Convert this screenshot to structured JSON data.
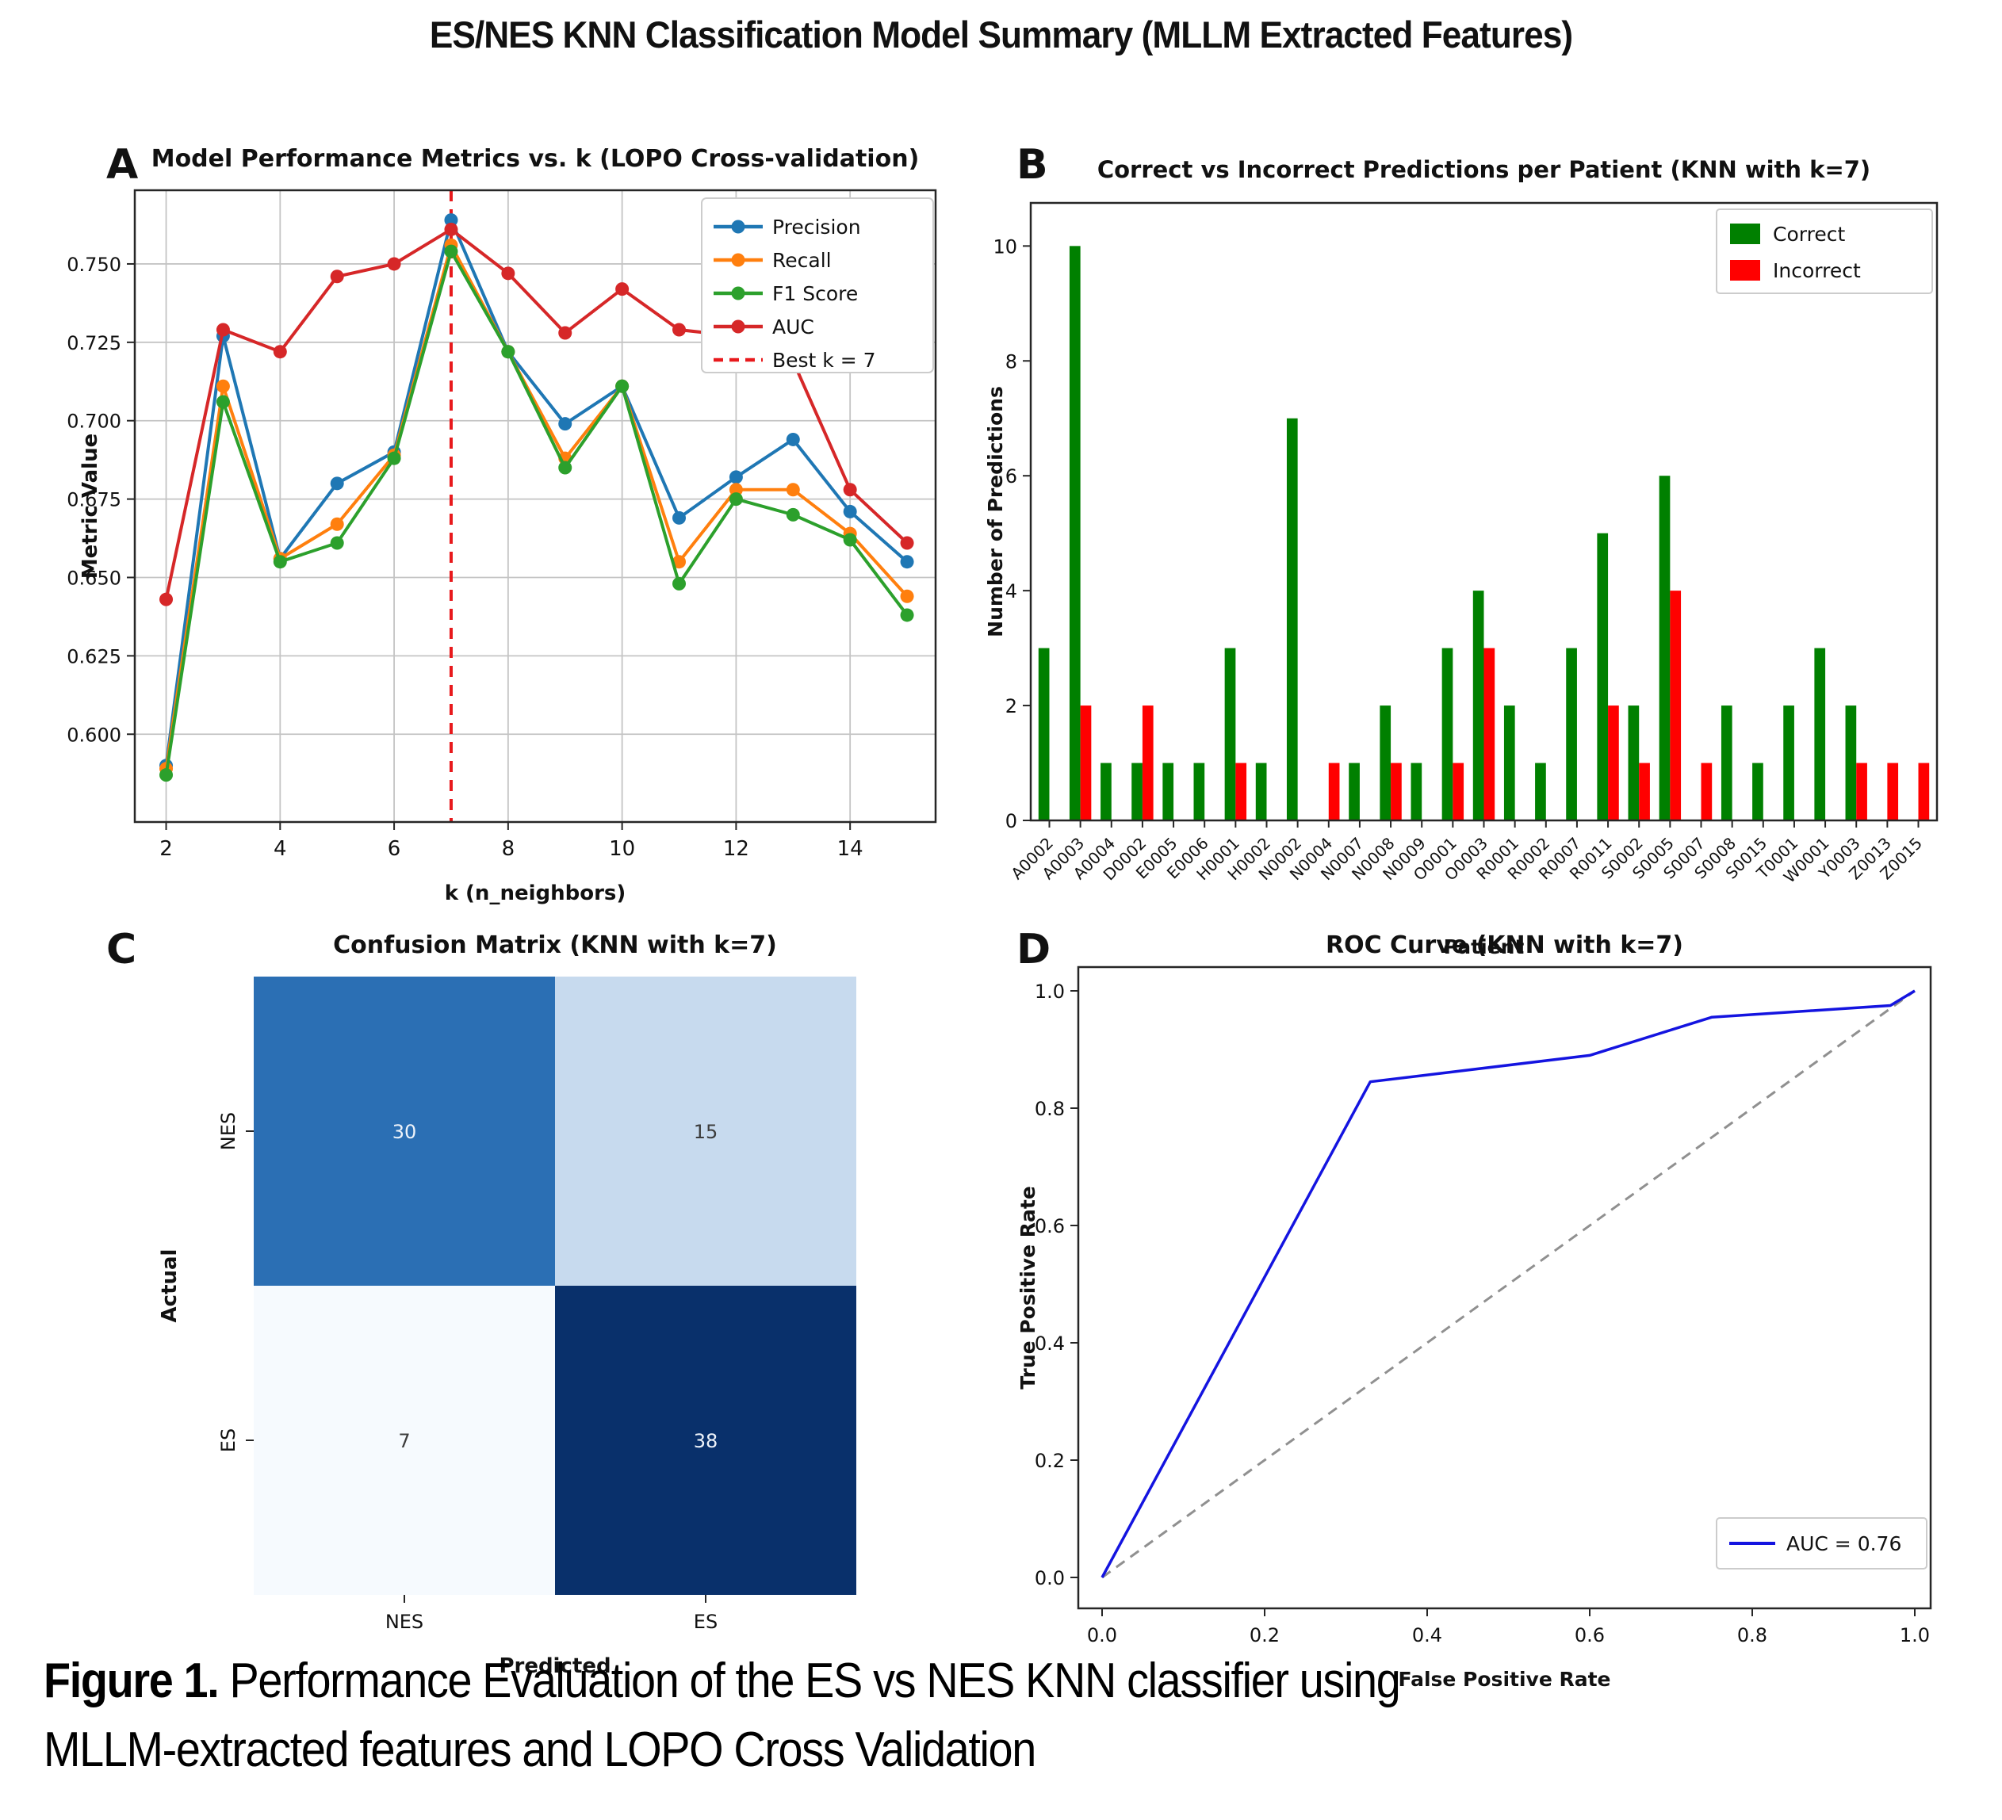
{
  "figure_title": "ES/NES KNN Classification Model Summary (MLLM Extracted Features)",
  "panel_letters": {
    "a": "A",
    "b": "B",
    "c": "C",
    "d": "D"
  },
  "caption": {
    "bold": "Figure 1.",
    "line1_rest": " Performance Evaluation of the ES vs NES KNN classifier using",
    "line2": "MLLM-extracted features and LOPO Cross Validation"
  },
  "chart_data": [
    {
      "id": "metrics-vs-k",
      "type": "line",
      "title": "Model Performance Metrics vs. k (LOPO Cross-validation)",
      "xlabel": "k (n_neighbors)",
      "ylabel": "Metric Value",
      "x": [
        2,
        3,
        4,
        5,
        6,
        7,
        8,
        9,
        10,
        11,
        12,
        13,
        14,
        15
      ],
      "xticks": [
        2,
        4,
        6,
        8,
        10,
        12,
        14
      ],
      "yticks": [
        "0.600",
        "0.625",
        "0.650",
        "0.675",
        "0.700",
        "0.725",
        "0.750"
      ],
      "xlim": [
        1.45,
        15.5
      ],
      "ylim": [
        0.572,
        0.7735
      ],
      "grid": true,
      "legend_position": "upper right",
      "series": [
        {
          "name": "Precision",
          "color": "#1f77b4",
          "values": [
            0.59,
            0.727,
            0.656,
            0.68,
            0.69,
            0.764,
            0.722,
            0.699,
            0.711,
            0.669,
            0.682,
            0.694,
            0.671,
            0.655
          ]
        },
        {
          "name": "Recall",
          "color": "#ff7f0e",
          "values": [
            0.589,
            0.711,
            0.656,
            0.667,
            0.689,
            0.756,
            0.722,
            0.688,
            0.711,
            0.655,
            0.678,
            0.678,
            0.664,
            0.644
          ]
        },
        {
          "name": "F1 Score",
          "color": "#2ca02c",
          "values": [
            0.587,
            0.706,
            0.655,
            0.661,
            0.688,
            0.754,
            0.722,
            0.685,
            0.711,
            0.648,
            0.675,
            0.67,
            0.662,
            0.638
          ]
        },
        {
          "name": "AUC",
          "color": "#d62728",
          "values": [
            0.643,
            0.729,
            0.722,
            0.746,
            0.75,
            0.761,
            0.747,
            0.728,
            0.742,
            0.729,
            0.727,
            0.719,
            0.678,
            0.661
          ]
        }
      ],
      "best_k": 7,
      "best_k_label": "Best k = 7",
      "best_k_color": "#e8191c"
    },
    {
      "id": "per-patient",
      "type": "bar",
      "title": "Correct vs Incorrect Predictions per Patient (KNN with k=7)",
      "xlabel": "Patient",
      "ylabel": "Number of Predictions",
      "categories": [
        "A0002",
        "A0003",
        "A0004",
        "D0002",
        "E0005",
        "E0006",
        "H0001",
        "H0002",
        "N0002",
        "N0004",
        "N0007",
        "N0008",
        "N0009",
        "O0001",
        "O0003",
        "R0001",
        "R0002",
        "R0007",
        "R0011",
        "S0002",
        "S0005",
        "S0007",
        "S0008",
        "S0015",
        "T0001",
        "W0001",
        "Y0003",
        "Z0013",
        "Z0015"
      ],
      "yticks": [
        0,
        2,
        4,
        6,
        8,
        10
      ],
      "ylim": [
        0,
        10.75
      ],
      "grid": false,
      "legend_position": "upper right",
      "series": [
        {
          "name": "Correct",
          "color": "#008000",
          "values": [
            3,
            10,
            1,
            1,
            1,
            1,
            3,
            1,
            7,
            0,
            1,
            2,
            1,
            3,
            4,
            2,
            1,
            3,
            5,
            2,
            6,
            0,
            2,
            1,
            2,
            3,
            2,
            0,
            0
          ]
        },
        {
          "name": "Incorrect",
          "color": "#ff0000",
          "values": [
            0,
            2,
            0,
            2,
            0,
            0,
            1,
            0,
            0,
            1,
            0,
            1,
            0,
            1,
            3,
            0,
            0,
            0,
            2,
            1,
            4,
            1,
            0,
            0,
            0,
            0,
            1,
            1,
            1
          ]
        }
      ]
    },
    {
      "id": "confusion-matrix",
      "type": "heatmap",
      "title": "Confusion Matrix (KNN with k=7)",
      "xlabel": "Predicted",
      "ylabel": "Actual",
      "row_labels": [
        "NES",
        "ES"
      ],
      "col_labels": [
        "NES",
        "ES"
      ],
      "values": [
        [
          30,
          15
        ],
        [
          7,
          38
        ]
      ],
      "cell_colors": [
        [
          "#2b6fb4",
          "#c7daee"
        ],
        [
          "#f6fafe",
          "#09306b"
        ]
      ],
      "value_colors": [
        [
          "#eef3fa",
          "#3c3c3c"
        ],
        [
          "#3c3c3c",
          "#eef3fa"
        ]
      ]
    },
    {
      "id": "roc",
      "type": "roc",
      "title": "ROC Curve (KNN with k=7)",
      "xlabel": "False Positive Rate",
      "ylabel": "True Positive Rate",
      "xticks": [
        "0.0",
        "0.2",
        "0.4",
        "0.6",
        "0.8",
        "1.0"
      ],
      "yticks": [
        "0.0",
        "0.2",
        "0.4",
        "0.6",
        "0.8",
        "1.0"
      ],
      "curve": {
        "fpr": [
          0.0,
          0.33,
          0.6,
          0.75,
          0.97,
          1.0
        ],
        "tpr": [
          0.0,
          0.845,
          0.89,
          0.955,
          0.975,
          1.0
        ],
        "color": "#1414e0"
      },
      "diagonal_color": "#909090",
      "legend_label": "AUC = 0.76"
    }
  ]
}
